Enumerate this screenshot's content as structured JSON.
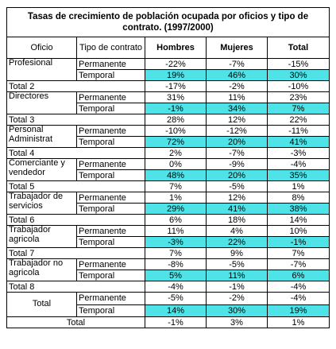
{
  "title": "Tasas de crecimiento de población ocupada por oficios y tipo de contrato. (1997/2000)",
  "headers": {
    "oficio": "Oficio",
    "tipo": "Tipo de contrato",
    "hombres": "Hombres",
    "mujeres": "Mujeres",
    "total": "Total"
  },
  "highlight_color": "#4fe3e8",
  "groups": [
    {
      "oficio": "Profesional",
      "rows": [
        {
          "tipo": "Permanente",
          "h": "-22%",
          "m": "-7%",
          "t": "-15%"
        },
        {
          "tipo": "Temporal",
          "h": "19%",
          "m": "46%",
          "t": "30%"
        }
      ],
      "total": {
        "label": "Total 2",
        "h": "-17%",
        "m": "-2%",
        "t": "-10%"
      }
    },
    {
      "oficio": "Directores",
      "rows": [
        {
          "tipo": "Permanente",
          "h": "31%",
          "m": "11%",
          "t": "23%"
        },
        {
          "tipo": "Temporal",
          "h": "-1%",
          "m": "34%",
          "t": "7%"
        }
      ],
      "total": {
        "label": "Total 3",
        "h": "28%",
        "m": "12%",
        "t": "22%"
      }
    },
    {
      "oficio": "Personal Administrat",
      "rows": [
        {
          "tipo": "Permanente",
          "h": "-10%",
          "m": "-12%",
          "t": "-11%"
        },
        {
          "tipo": "Temporal",
          "h": "72%",
          "m": "20%",
          "t": "41%"
        }
      ],
      "total": {
        "label": "Total 4",
        "h": "2%",
        "m": "-7%",
        "t": "-3%"
      }
    },
    {
      "oficio": "Comerciante y vendedor",
      "rows": [
        {
          "tipo": "Permanente",
          "h": "0%",
          "m": "-9%",
          "t": "-4%"
        },
        {
          "tipo": "Temporal",
          "h": "48%",
          "m": "20%",
          "t": "35%"
        }
      ],
      "total": {
        "label": "Total 5",
        "h": "7%",
        "m": "-5%",
        "t": "1%"
      }
    },
    {
      "oficio": "Trabajador de servicios",
      "rows": [
        {
          "tipo": "Permanente",
          "h": "1%",
          "m": "12%",
          "t": "8%"
        },
        {
          "tipo": "Temporal",
          "h": "29%",
          "m": "41%",
          "t": "38%"
        }
      ],
      "total": {
        "label": "Total 6",
        "h": "6%",
        "m": "18%",
        "t": "14%"
      }
    },
    {
      "oficio": "Trabajador agricola",
      "rows": [
        {
          "tipo": "Permanente",
          "h": "11%",
          "m": "4%",
          "t": "10%"
        },
        {
          "tipo": "Temporal",
          "h": "-3%",
          "m": "22%",
          "t": "-1%"
        }
      ],
      "total": {
        "label": "Total 7",
        "h": "7%",
        "m": "9%",
        "t": "7%"
      }
    },
    {
      "oficio": "Trabajador no agricola",
      "rows": [
        {
          "tipo": "Permanente",
          "h": "-8%",
          "m": "-5%",
          "t": "-7%"
        },
        {
          "tipo": "Temporal",
          "h": "5%",
          "m": "11%",
          "t": "6%"
        }
      ],
      "total": {
        "label": "Total 8",
        "h": "-4%",
        "m": "-1%",
        "t": "-4%"
      }
    },
    {
      "oficio": "Total",
      "rows": [
        {
          "tipo": "Permanente",
          "h": "-5%",
          "m": "-2%",
          "t": "-4%"
        },
        {
          "tipo": "Temporal",
          "h": "14%",
          "m": "30%",
          "t": "19%"
        }
      ]
    }
  ],
  "grand_total": {
    "label": "Total",
    "h": "-1%",
    "m": "3%",
    "t": "1%"
  }
}
